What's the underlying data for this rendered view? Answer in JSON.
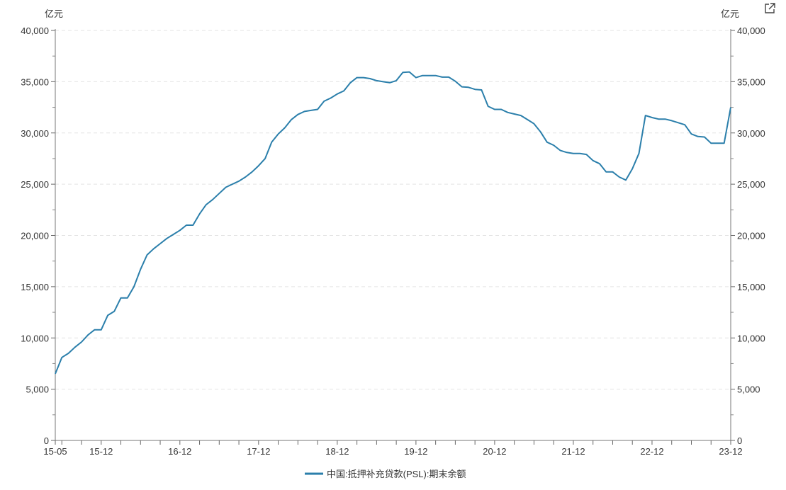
{
  "chart_data": {
    "type": "line",
    "yunit_left": "亿元",
    "yunit_right": "亿元",
    "ylim": [
      0,
      40000
    ],
    "yticks": [
      0,
      5000,
      10000,
      15000,
      20000,
      25000,
      30000,
      35000,
      40000
    ],
    "ytick_labels": [
      "0",
      "5,000",
      "10,000",
      "15,000",
      "20,000",
      "25,000",
      "30,000",
      "35,000",
      "40,000"
    ],
    "xtick_labels": [
      "15-05",
      "15-12",
      "16-12",
      "17-12",
      "18-12",
      "19-12",
      "20-12",
      "21-12",
      "22-12",
      "23-12"
    ],
    "xtick_month_index": [
      0,
      7,
      19,
      31,
      43,
      55,
      67,
      79,
      91,
      103
    ],
    "x_start": "15-05",
    "x_end": "23-12",
    "grid": "horizontal dashed",
    "legend_position": "bottom",
    "series": [
      {
        "name": "中国:抵押补充贷款(PSL):期末余额",
        "color": "#2b7fab",
        "values": [
          6500,
          8100,
          8500,
          9100,
          9600,
          10300,
          10800,
          10800,
          12200,
          12600,
          13900,
          13900,
          15000,
          16700,
          18100,
          18700,
          19200,
          19700,
          20100,
          20500,
          21000,
          21000,
          22100,
          23000,
          23500,
          24100,
          24700,
          25000,
          25300,
          25700,
          26200,
          26800,
          27500,
          29100,
          29900,
          30500,
          31300,
          31800,
          32100,
          32200,
          32300,
          33100,
          33400,
          33800,
          34100,
          34900,
          35400,
          35400,
          35300,
          35100,
          35000,
          34900,
          35100,
          35900,
          35950,
          35400,
          35600,
          35600,
          35600,
          35450,
          35450,
          35050,
          34500,
          34450,
          34250,
          34200,
          32600,
          32300,
          32300,
          32000,
          31850,
          31700,
          31300,
          30900,
          30100,
          29100,
          28800,
          28300,
          28100,
          28000,
          28000,
          27900,
          27300,
          27000,
          26200,
          26200,
          25700,
          25400,
          26500,
          28000,
          31700,
          31500,
          31350,
          31350,
          31200,
          31000,
          30800,
          29900,
          29650,
          29600,
          29000,
          29000,
          29000,
          32500
        ]
      }
    ]
  },
  "toolbar": {
    "external_link_icon": "external-link-icon"
  }
}
